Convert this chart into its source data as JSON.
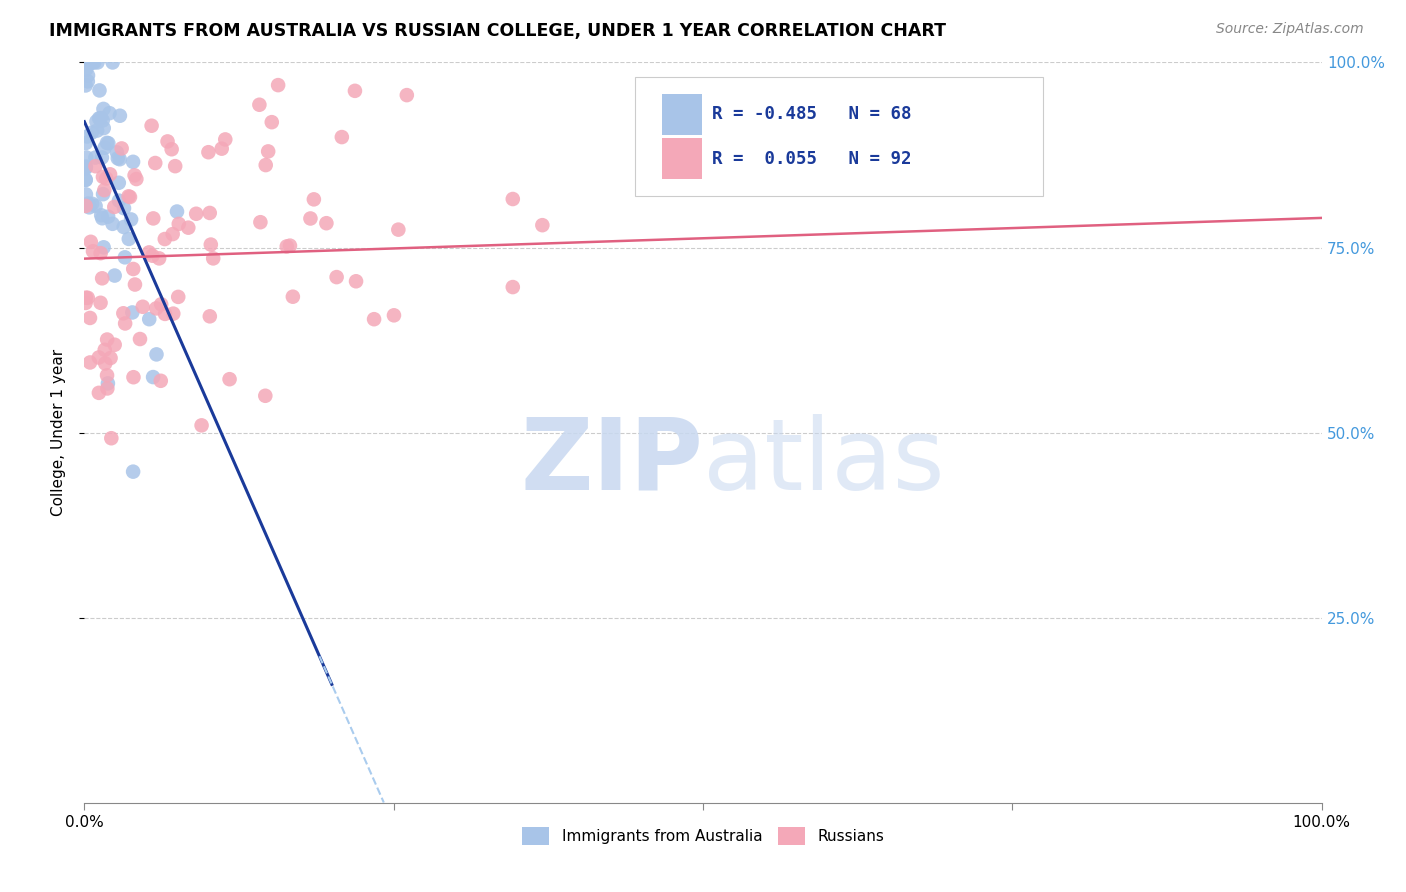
{
  "title": "IMMIGRANTS FROM AUSTRALIA VS RUSSIAN COLLEGE, UNDER 1 YEAR CORRELATION CHART",
  "source": "Source: ZipAtlas.com",
  "ylabel": "College, Under 1 year",
  "legend_r_australia": "-0.485",
  "legend_n_australia": "68",
  "legend_r_russian": "0.055",
  "legend_n_russian": "92",
  "legend_label_australia": "Immigrants from Australia",
  "legend_label_russian": "Russians",
  "australia_color": "#a8c4e8",
  "russian_color": "#f4a8b8",
  "australia_line_color": "#1a3a9a",
  "russian_line_color": "#e06080",
  "dashed_line_color": "#aaccee",
  "right_tick_color": "#4499dd",
  "watermark_zip_color": "#c8d8f0",
  "watermark_atlas_color": "#c8d8f0",
  "aus_intercept": 0.92,
  "aus_slope": -3.8,
  "rus_intercept": 0.735,
  "rus_slope": 0.055
}
